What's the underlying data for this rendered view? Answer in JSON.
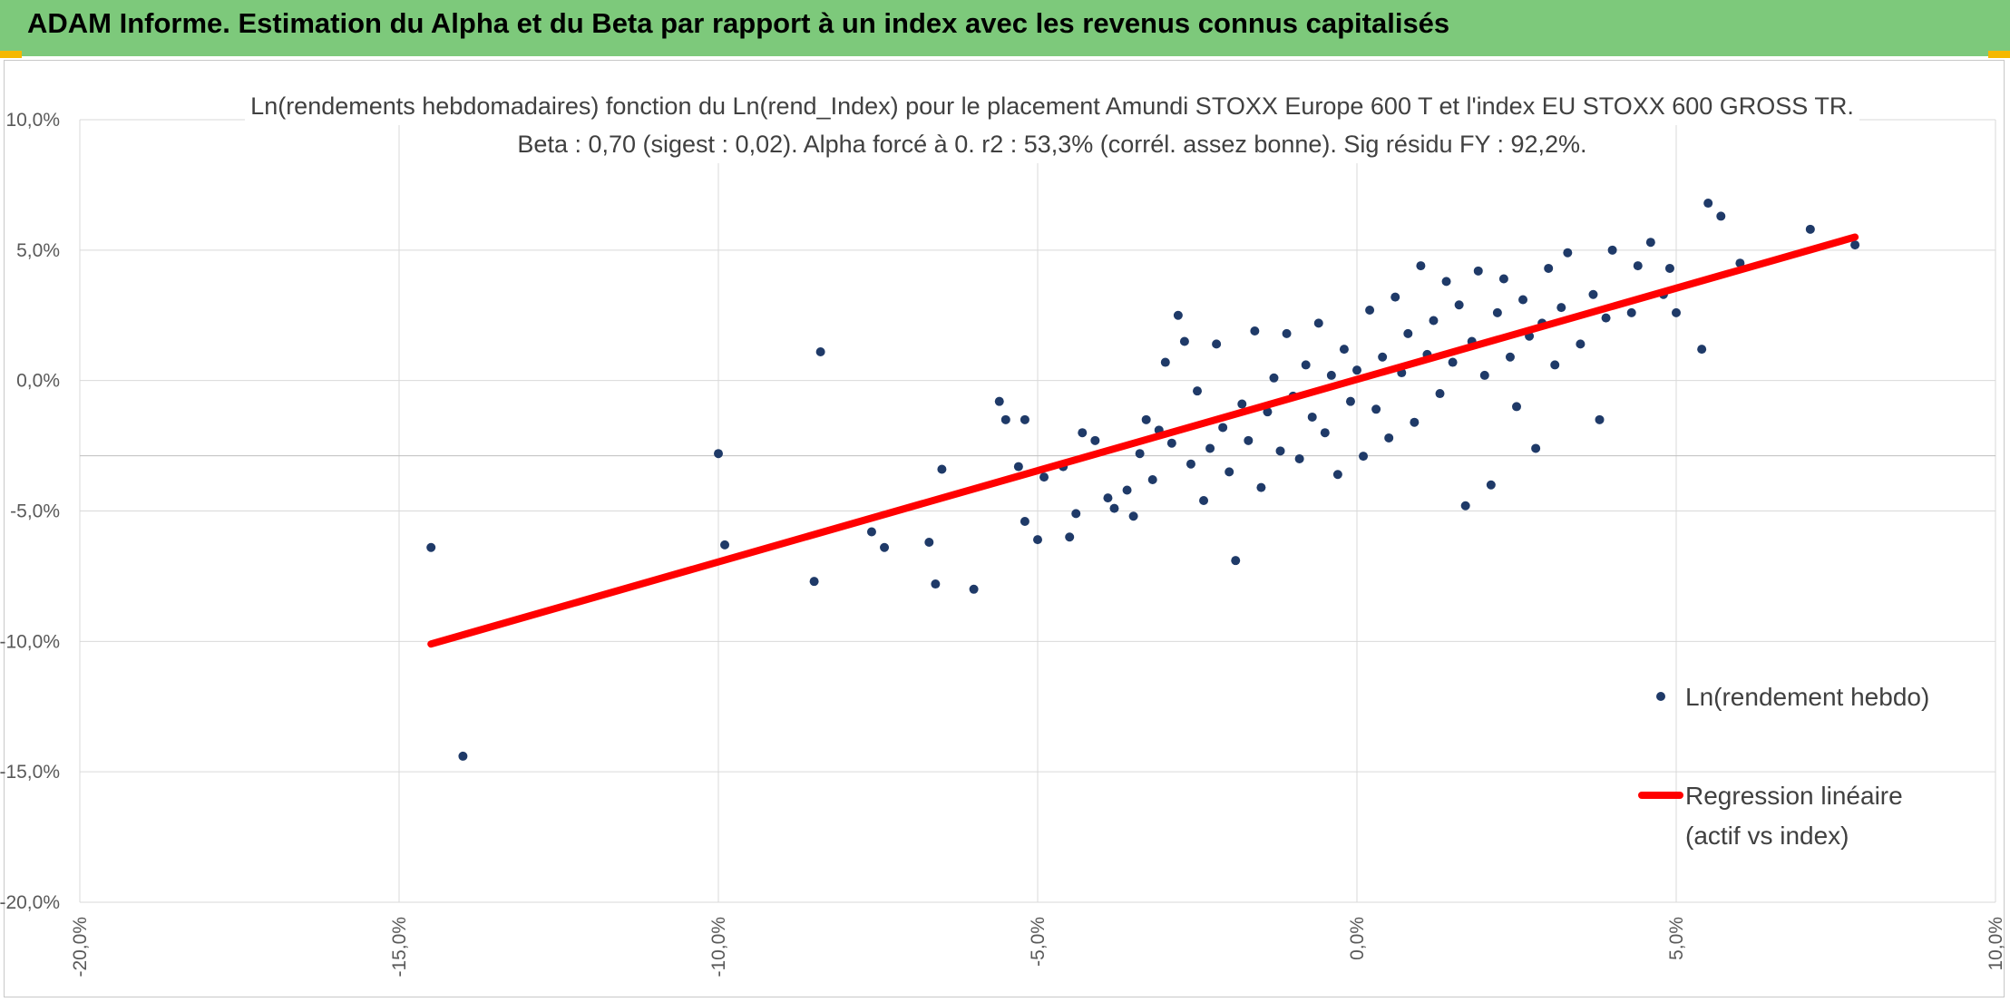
{
  "header": {
    "title": "ADAM Informe. Estimation du Alpha et du Beta par rapport à un index avec les revenus connus capitalisés"
  },
  "colors": {
    "banner": "#7dc97b",
    "points": "#1f3a68",
    "regression": "#ff0000",
    "grid": "#d9d9d9"
  },
  "chart_data": {
    "type": "scatter",
    "title": "Ln(rendements hebdomadaires) fonction du Ln(rend_Index) pour le placement Amundi STOXX Europe 600 T et l'index EU STOXX 600 GROSS TR.",
    "subtitle": "Beta : 0,70 (sigest : 0,02). Alpha forcé à 0. r2 : 53,3% (corrél. assez bonne). Sig résidu FY : 92,2%.",
    "xlabel": "",
    "ylabel": "",
    "xlim": [
      -20,
      10
    ],
    "ylim": [
      -20,
      10
    ],
    "x_ticks": [
      "-20,0%",
      "-15,0%",
      "-10,0%",
      "-5,0%",
      "0,0%",
      "5,0%",
      "10,0%"
    ],
    "y_ticks": [
      "10,0%",
      "5,0%",
      "0,0%",
      "-5,0%",
      "-10,0%",
      "-15,0%",
      "-20,0%"
    ],
    "grid": true,
    "legend_position": "right",
    "series": [
      {
        "name": "Ln(rendement hebdo)",
        "kind": "scatter",
        "points": [
          [
            -14.5,
            -6.4
          ],
          [
            -14.0,
            -14.4
          ],
          [
            -10.0,
            -2.8
          ],
          [
            -9.9,
            -6.3
          ],
          [
            -8.4,
            1.1
          ],
          [
            -8.5,
            -7.7
          ],
          [
            -7.6,
            -5.8
          ],
          [
            -7.4,
            -6.4
          ],
          [
            -6.7,
            -6.2
          ],
          [
            -6.6,
            -7.8
          ],
          [
            -6.5,
            -3.4
          ],
          [
            -6.0,
            -8.0
          ],
          [
            -5.6,
            -0.8
          ],
          [
            -5.5,
            -1.5
          ],
          [
            -5.2,
            -1.5
          ],
          [
            -5.3,
            -3.3
          ],
          [
            -5.2,
            -5.4
          ],
          [
            -5.0,
            -6.1
          ],
          [
            -4.9,
            -3.7
          ],
          [
            -4.6,
            -3.3
          ],
          [
            -4.5,
            -6.0
          ],
          [
            -4.4,
            -5.1
          ],
          [
            -4.3,
            -2.0
          ],
          [
            -4.1,
            -2.3
          ],
          [
            -3.9,
            -4.5
          ],
          [
            -3.8,
            -4.9
          ],
          [
            -3.6,
            -4.2
          ],
          [
            -3.5,
            -5.2
          ],
          [
            -3.4,
            -2.8
          ],
          [
            -3.3,
            -1.5
          ],
          [
            -3.2,
            -3.8
          ],
          [
            -3.1,
            -1.9
          ],
          [
            -3.0,
            0.7
          ],
          [
            -2.9,
            -2.4
          ],
          [
            -2.8,
            2.5
          ],
          [
            -2.7,
            1.5
          ],
          [
            -2.6,
            -3.2
          ],
          [
            -2.5,
            -0.4
          ],
          [
            -2.4,
            -4.6
          ],
          [
            -2.3,
            -2.6
          ],
          [
            -2.2,
            1.4
          ],
          [
            -2.1,
            -1.8
          ],
          [
            -2.0,
            -3.5
          ],
          [
            -1.9,
            -6.9
          ],
          [
            -1.8,
            -0.9
          ],
          [
            -1.7,
            -2.3
          ],
          [
            -1.6,
            1.9
          ],
          [
            -1.5,
            -4.1
          ],
          [
            -1.4,
            -1.2
          ],
          [
            -1.3,
            0.1
          ],
          [
            -1.2,
            -2.7
          ],
          [
            -1.1,
            1.8
          ],
          [
            -1.0,
            -0.6
          ],
          [
            -0.9,
            -3.0
          ],
          [
            -0.8,
            0.6
          ],
          [
            -0.7,
            -1.4
          ],
          [
            -0.6,
            2.2
          ],
          [
            -0.5,
            -2.0
          ],
          [
            -0.4,
            0.2
          ],
          [
            -0.3,
            -3.6
          ],
          [
            -0.2,
            1.2
          ],
          [
            -0.1,
            -0.8
          ],
          [
            0.0,
            0.4
          ],
          [
            0.1,
            -2.9
          ],
          [
            0.2,
            2.7
          ],
          [
            0.3,
            -1.1
          ],
          [
            0.4,
            0.9
          ],
          [
            0.5,
            -2.2
          ],
          [
            0.6,
            3.2
          ],
          [
            0.7,
            0.3
          ],
          [
            0.8,
            1.8
          ],
          [
            0.9,
            -1.6
          ],
          [
            1.0,
            4.4
          ],
          [
            1.1,
            1.0
          ],
          [
            1.2,
            2.3
          ],
          [
            1.3,
            -0.5
          ],
          [
            1.4,
            3.8
          ],
          [
            1.5,
            0.7
          ],
          [
            1.6,
            2.9
          ],
          [
            1.7,
            -4.8
          ],
          [
            1.8,
            1.5
          ],
          [
            1.9,
            4.2
          ],
          [
            2.0,
            0.2
          ],
          [
            2.1,
            -4.0
          ],
          [
            2.2,
            2.6
          ],
          [
            2.3,
            3.9
          ],
          [
            2.4,
            0.9
          ],
          [
            2.5,
            -1.0
          ],
          [
            2.6,
            3.1
          ],
          [
            2.7,
            1.7
          ],
          [
            2.8,
            -2.6
          ],
          [
            2.9,
            2.2
          ],
          [
            3.0,
            4.3
          ],
          [
            3.1,
            0.6
          ],
          [
            3.2,
            2.8
          ],
          [
            3.3,
            4.9
          ],
          [
            3.5,
            1.4
          ],
          [
            3.7,
            3.3
          ],
          [
            3.8,
            -1.5
          ],
          [
            3.9,
            2.4
          ],
          [
            4.0,
            5.0
          ],
          [
            4.3,
            2.6
          ],
          [
            4.4,
            4.4
          ],
          [
            4.6,
            5.3
          ],
          [
            4.8,
            3.3
          ],
          [
            4.9,
            4.3
          ],
          [
            5.0,
            2.6
          ],
          [
            5.4,
            1.2
          ],
          [
            5.5,
            6.8
          ],
          [
            5.7,
            6.3
          ],
          [
            6.0,
            4.5
          ],
          [
            7.1,
            5.8
          ],
          [
            7.8,
            5.2
          ]
        ]
      },
      {
        "name": "Regression linéaire (actif vs index)",
        "kind": "line",
        "points": [
          [
            -14.5,
            -10.1
          ],
          [
            7.8,
            5.5
          ]
        ]
      }
    ],
    "legend": {
      "scatter_label": "Ln(rendement hebdo)",
      "line_label_1": "Regression linéaire",
      "line_label_2": "(actif vs index)"
    }
  }
}
